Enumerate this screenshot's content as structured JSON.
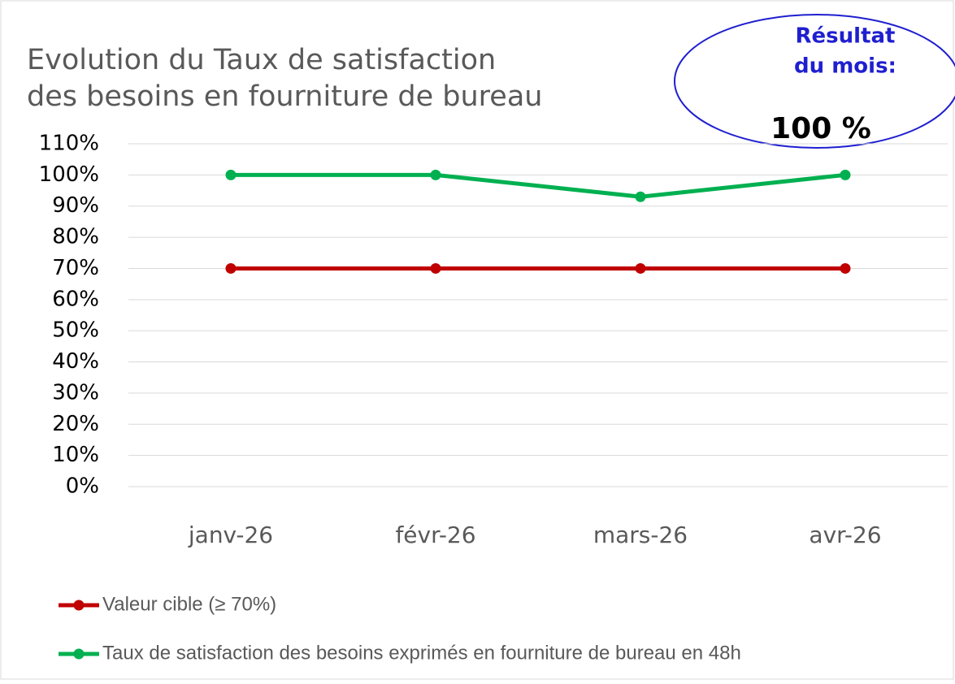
{
  "chart_data": {
    "type": "line",
    "title_lines": [
      "Evolution du Taux de satisfaction",
      "des besoins en fourniture de bureau"
    ],
    "annotation": {
      "lines": [
        "Résultat",
        "du mois:"
      ],
      "result": "100 %"
    },
    "categories": [
      "janv-26",
      "févr-26",
      "mars-26",
      "avr-26"
    ],
    "series": [
      {
        "name": "Valeur cible (≥ 70%)",
        "color": "#c00000",
        "values": [
          70,
          70,
          70,
          70
        ]
      },
      {
        "name": "Taux de satisfaction des besoins exprimés en fourniture de bureau en 48h",
        "color": "#00b050",
        "values": [
          100,
          100,
          93,
          100
        ]
      }
    ],
    "ylim": [
      0,
      110
    ],
    "yticks": [
      {
        "value": 0,
        "label": "0%"
      },
      {
        "value": 10,
        "label": "10%"
      },
      {
        "value": 20,
        "label": "20%"
      },
      {
        "value": 30,
        "label": "30%"
      },
      {
        "value": 40,
        "label": "40%"
      },
      {
        "value": 50,
        "label": "50%"
      },
      {
        "value": 60,
        "label": "60%"
      },
      {
        "value": 70,
        "label": "70%"
      },
      {
        "value": 80,
        "label": "80%"
      },
      {
        "value": 90,
        "label": "90%"
      },
      {
        "value": 100,
        "label": "100%"
      },
      {
        "value": 110,
        "label": "110%"
      }
    ],
    "grid": true,
    "legend": "bottom-left"
  }
}
